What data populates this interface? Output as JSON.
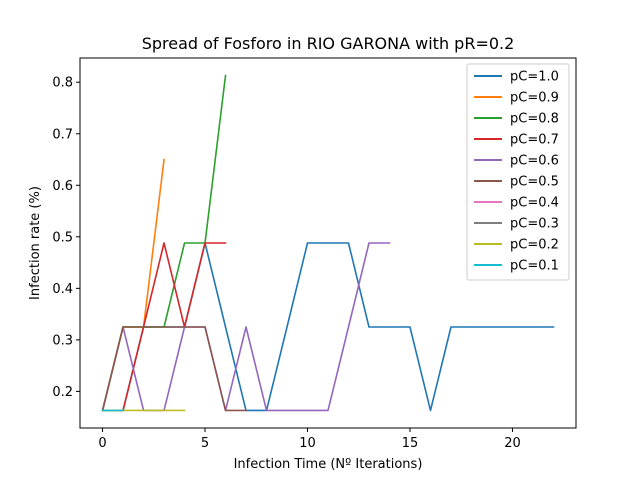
{
  "chart_data": {
    "type": "line",
    "title": "Spread of Fosforo in RIO GARONA with pR=0.2",
    "xlabel": "Infection Time (Nº Iterations)",
    "ylabel": "Infection rate (%)",
    "xlim": [
      -1.1,
      23.1
    ],
    "ylim": [
      0.129,
      0.847
    ],
    "xticks": [
      0,
      5,
      10,
      15,
      20
    ],
    "yticks": [
      0.2,
      0.3,
      0.4,
      0.5,
      0.6,
      0.7,
      0.8
    ],
    "ytick_labels": [
      "0.2",
      "0.3",
      "0.4",
      "0.5",
      "0.6",
      "0.7",
      "0.8"
    ],
    "grid": false,
    "legend_position": "top-right",
    "series": [
      {
        "name": "pC=1.0",
        "color": "#1f77b4",
        "x": [
          0,
          1,
          2,
          3,
          4,
          5,
          6,
          7,
          8,
          9,
          10,
          11,
          12,
          13,
          14,
          15,
          16,
          17,
          18,
          19,
          20,
          21,
          22
        ],
        "y": [
          0.163,
          0.163,
          0.325,
          0.325,
          0.325,
          0.488,
          0.325,
          0.163,
          0.163,
          0.325,
          0.488,
          0.488,
          0.488,
          0.325,
          0.325,
          0.325,
          0.163,
          0.325,
          0.325,
          0.325,
          0.325,
          0.325,
          0.325
        ]
      },
      {
        "name": "pC=0.9",
        "color": "#ff7f0e",
        "x": [
          0,
          1,
          2,
          3
        ],
        "y": [
          0.163,
          0.325,
          0.325,
          0.65
        ]
      },
      {
        "name": "pC=0.8",
        "color": "#2ca02c",
        "x": [
          0,
          1,
          2,
          3,
          4,
          5,
          6
        ],
        "y": [
          0.163,
          0.325,
          0.325,
          0.325,
          0.488,
          0.488,
          0.813
        ]
      },
      {
        "name": "pC=0.7",
        "color": "#d62728",
        "x": [
          0,
          1,
          2,
          3,
          4,
          5,
          6
        ],
        "y": [
          0.163,
          0.163,
          0.325,
          0.488,
          0.325,
          0.488,
          0.488
        ]
      },
      {
        "name": "pC=0.6",
        "color": "#9467bd",
        "x": [
          0,
          1,
          2,
          3,
          4,
          5,
          6,
          7,
          8,
          9,
          10,
          11,
          12,
          13,
          14
        ],
        "y": [
          0.163,
          0.325,
          0.163,
          0.163,
          0.325,
          0.325,
          0.163,
          0.325,
          0.163,
          0.163,
          0.163,
          0.163,
          0.325,
          0.488,
          0.488
        ]
      },
      {
        "name": "pC=0.5",
        "color": "#8c564b",
        "x": [
          0,
          1,
          2,
          3,
          4,
          5,
          6,
          7
        ],
        "y": [
          0.163,
          0.325,
          0.325,
          0.325,
          0.325,
          0.325,
          0.163,
          0.163
        ]
      },
      {
        "name": "pC=0.4",
        "color": "#e377c2",
        "x": [
          0,
          1
        ],
        "y": [
          0.163,
          0.163
        ]
      },
      {
        "name": "pC=0.3",
        "color": "#7f7f7f",
        "x": [
          0,
          1
        ],
        "y": [
          0.163,
          0.163
        ]
      },
      {
        "name": "pC=0.2",
        "color": "#bcbd22",
        "x": [
          0,
          1,
          2,
          3,
          4
        ],
        "y": [
          0.163,
          0.163,
          0.163,
          0.163,
          0.163
        ]
      },
      {
        "name": "pC=0.1",
        "color": "#17becf",
        "x": [
          0,
          1
        ],
        "y": [
          0.163,
          0.163
        ]
      }
    ]
  }
}
